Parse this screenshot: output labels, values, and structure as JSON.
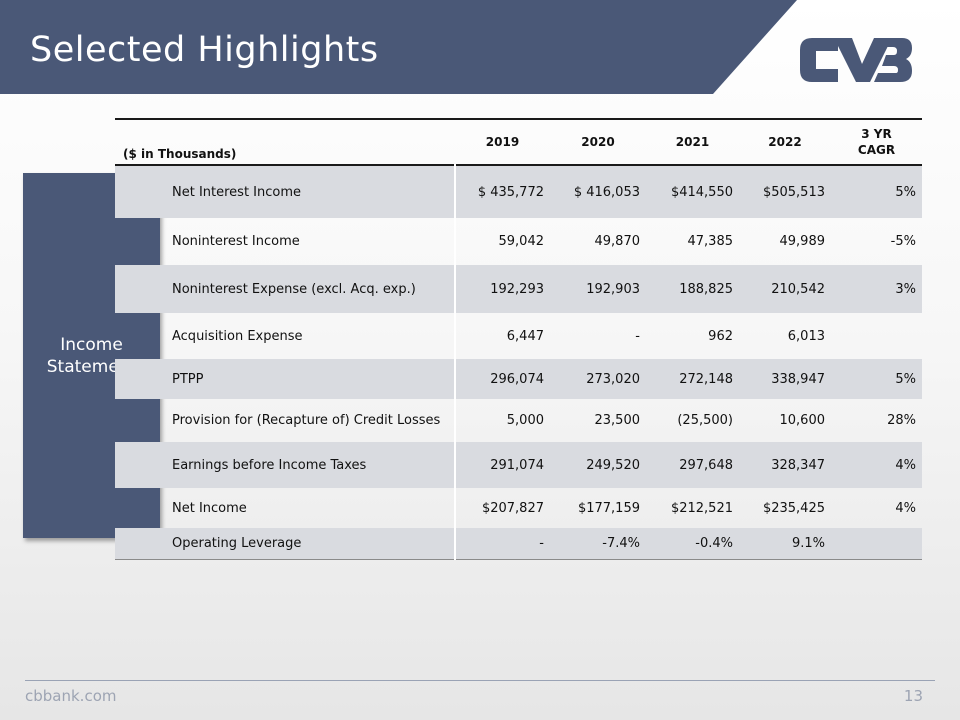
{
  "header": {
    "title": "Selected Highlights",
    "banner_color": "#4a5877",
    "logo": "cvb-logo"
  },
  "side_label": {
    "line1": "Income",
    "line2": "Statement"
  },
  "table": {
    "units_label": "($ in Thousands)",
    "columns": [
      "2019",
      "2020",
      "2021",
      "2022"
    ],
    "cagr_line1": "3 YR",
    "cagr_line2": "CAGR",
    "rows": [
      {
        "label": "Net Interest Income",
        "values": [
          "$ 435,772",
          "$ 416,053",
          "$414,550",
          "$505,513"
        ],
        "cagr": "5%"
      },
      {
        "label": "Noninterest Income",
        "values": [
          "59,042",
          "49,870",
          "47,385",
          "49,989"
        ],
        "cagr": "-5%"
      },
      {
        "label": "Noninterest Expense (excl. Acq. exp.)",
        "values": [
          "192,293",
          "192,903",
          "188,825",
          "210,542"
        ],
        "cagr": "3%"
      },
      {
        "label": "Acquisition Expense",
        "values": [
          "6,447",
          "-",
          "962",
          "6,013"
        ],
        "cagr": ""
      },
      {
        "label": "PTPP",
        "values": [
          "296,074",
          "273,020",
          "272,148",
          "338,947"
        ],
        "cagr": "5%"
      },
      {
        "label": "Provision for (Recapture of) Credit Losses",
        "values": [
          "5,000",
          "23,500",
          "(25,500)",
          "10,600"
        ],
        "cagr": "28%"
      },
      {
        "label": "Earnings before Income Taxes",
        "values": [
          "291,074",
          "249,520",
          "297,648",
          "328,347"
        ],
        "cagr": "4%"
      },
      {
        "label": "Net Income",
        "values": [
          "$207,827",
          "$177,159",
          "$212,521",
          "$235,425"
        ],
        "cagr": "4%"
      },
      {
        "label": "Operating Leverage",
        "values": [
          "-",
          "-7.4%",
          "-0.4%",
          "9.1%"
        ],
        "cagr": ""
      }
    ]
  },
  "footer": {
    "site": "cbbank.com",
    "page_number": "13"
  }
}
